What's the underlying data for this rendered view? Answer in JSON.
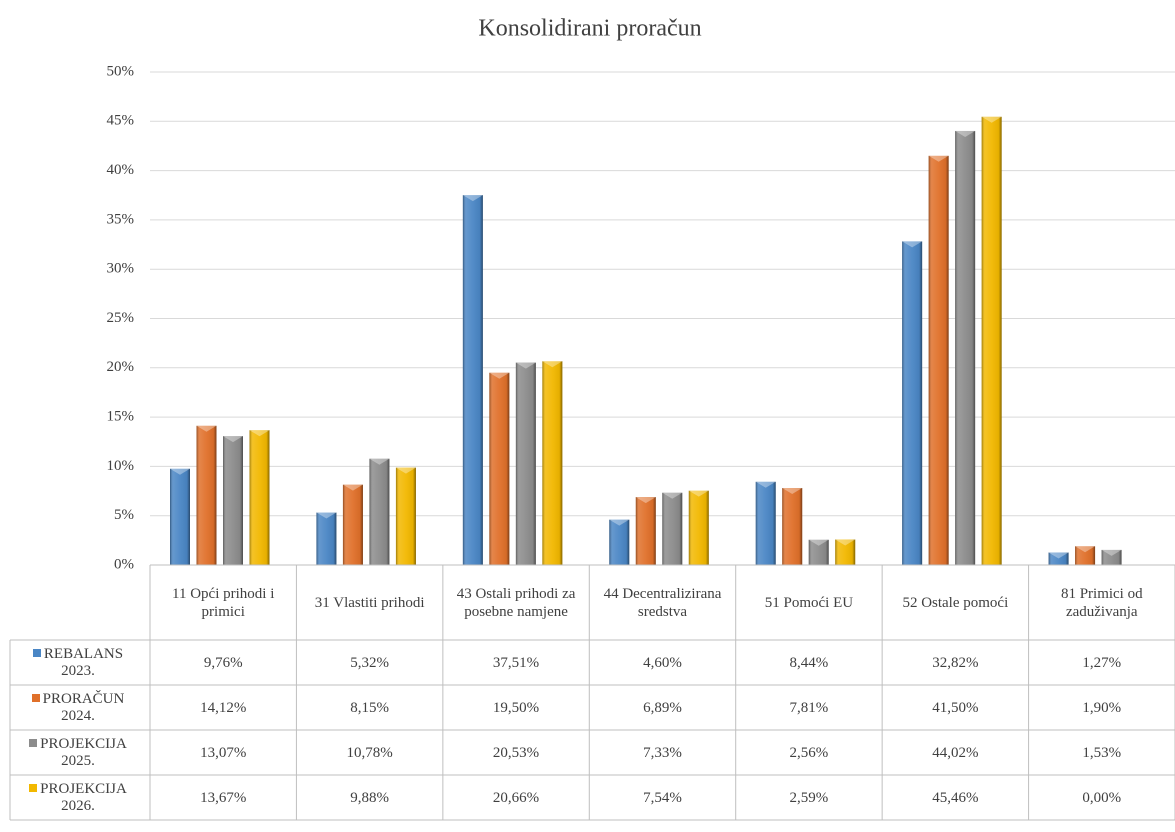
{
  "chart_data": {
    "type": "bar",
    "title": "Konsolidirani proračun",
    "categories": [
      "11 Opći prihodi i primici",
      "31 Vlastiti prihodi",
      "43 Ostali prihodi za posebne namjene",
      "44 Decentralizirana sredstva",
      "51 Pomoći EU",
      "52 Ostale pomoći",
      "81 Primici od zaduživanja"
    ],
    "series": [
      {
        "name": "REBALANS 2023.",
        "color": "#4a86c5",
        "values": [
          9.76,
          5.32,
          37.51,
          4.6,
          8.44,
          32.82,
          1.27
        ],
        "value_labels": [
          "9,76%",
          "5,32%",
          "37,51%",
          "4,60%",
          "8,44%",
          "32,82%",
          "1,27%"
        ]
      },
      {
        "name": "PRORAČUN 2024.",
        "color": "#e0702a",
        "values": [
          14.12,
          8.15,
          19.5,
          6.89,
          7.81,
          41.5,
          1.9
        ],
        "value_labels": [
          "14,12%",
          "8,15%",
          "19,50%",
          "6,89%",
          "7,81%",
          "41,50%",
          "1,90%"
        ]
      },
      {
        "name": "PROJEKCIJA 2025.",
        "color": "#8c8c8c",
        "values": [
          13.07,
          10.78,
          20.53,
          7.33,
          2.56,
          44.02,
          1.53
        ],
        "value_labels": [
          "13,07%",
          "10,78%",
          "20,53%",
          "7,33%",
          "2,56%",
          "44,02%",
          "1,53%"
        ]
      },
      {
        "name": "PROJEKCIJA 2026.",
        "color": "#f2b800",
        "values": [
          13.67,
          9.88,
          20.66,
          7.54,
          2.59,
          45.46,
          0.0
        ],
        "value_labels": [
          "13,67%",
          "9,88%",
          "20,66%",
          "7,54%",
          "2,59%",
          "45,46%",
          "0,00%"
        ]
      }
    ],
    "ylim": [
      0,
      50
    ],
    "yticks": [
      {
        "value": 0,
        "label": "0%"
      },
      {
        "value": 5,
        "label": "5%"
      },
      {
        "value": 10,
        "label": "10%"
      },
      {
        "value": 15,
        "label": "15%"
      },
      {
        "value": 20,
        "label": "20%"
      },
      {
        "value": 25,
        "label": "25%"
      },
      {
        "value": 30,
        "label": "30%"
      },
      {
        "value": 35,
        "label": "35%"
      },
      {
        "value": 40,
        "label": "40%"
      },
      {
        "value": 45,
        "label": "45%"
      },
      {
        "value": 50,
        "label": "50%"
      }
    ],
    "grid": true
  }
}
